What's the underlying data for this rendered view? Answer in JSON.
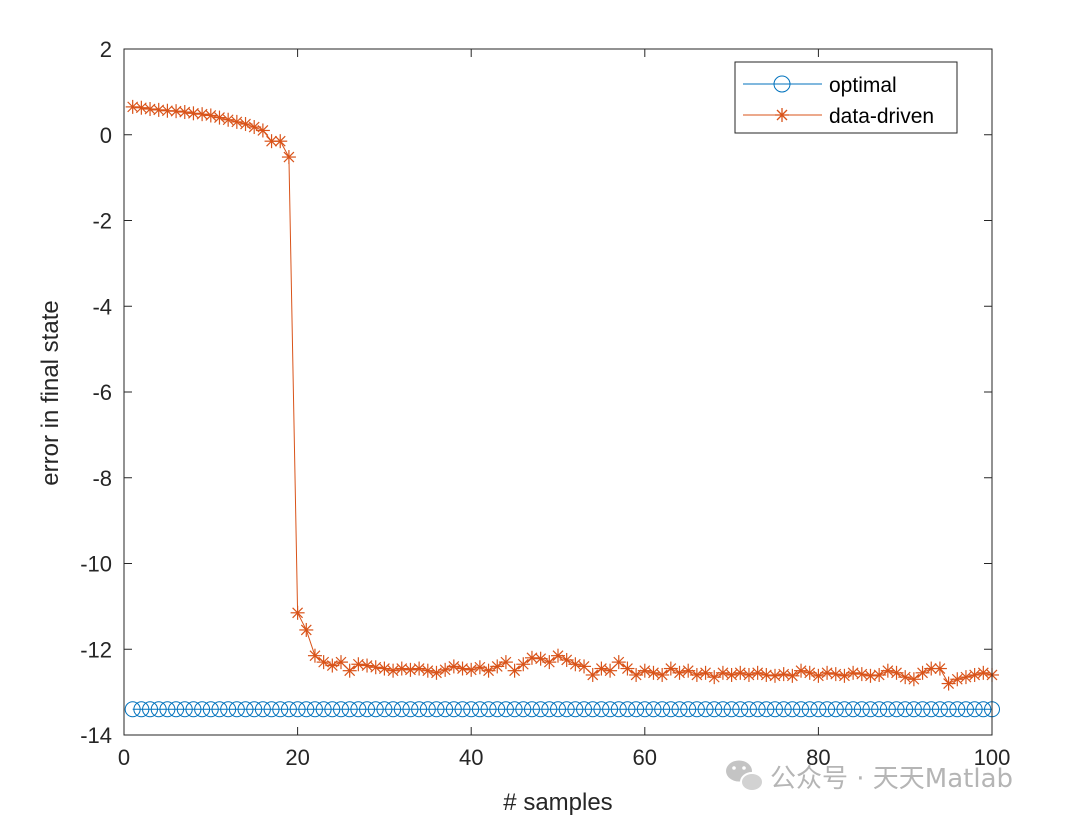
{
  "chart_data": {
    "type": "line",
    "title": "",
    "xlabel": "# samples",
    "ylabel": "error in final state",
    "xlim": [
      0,
      100
    ],
    "ylim": [
      -14,
      2
    ],
    "xticks": [
      0,
      20,
      40,
      60,
      80,
      100
    ],
    "yticks": [
      2,
      0,
      -2,
      -4,
      -6,
      -8,
      -10,
      -12,
      -14
    ],
    "grid": false,
    "legend_position": "top-right",
    "series": [
      {
        "name": "optimal",
        "color": "#0072BD",
        "marker": "circle",
        "x": [
          1,
          2,
          3,
          4,
          5,
          6,
          7,
          8,
          9,
          10,
          11,
          12,
          13,
          14,
          15,
          16,
          17,
          18,
          19,
          20,
          21,
          22,
          23,
          24,
          25,
          26,
          27,
          28,
          29,
          30,
          31,
          32,
          33,
          34,
          35,
          36,
          37,
          38,
          39,
          40,
          41,
          42,
          43,
          44,
          45,
          46,
          47,
          48,
          49,
          50,
          51,
          52,
          53,
          54,
          55,
          56,
          57,
          58,
          59,
          60,
          61,
          62,
          63,
          64,
          65,
          66,
          67,
          68,
          69,
          70,
          71,
          72,
          73,
          74,
          75,
          76,
          77,
          78,
          79,
          80,
          81,
          82,
          83,
          84,
          85,
          86,
          87,
          88,
          89,
          90,
          91,
          92,
          93,
          94,
          95,
          96,
          97,
          98,
          99,
          100
        ],
        "y": [
          -13.4,
          -13.4,
          -13.4,
          -13.4,
          -13.4,
          -13.4,
          -13.4,
          -13.4,
          -13.4,
          -13.4,
          -13.4,
          -13.4,
          -13.4,
          -13.4,
          -13.4,
          -13.4,
          -13.4,
          -13.4,
          -13.4,
          -13.4,
          -13.4,
          -13.4,
          -13.4,
          -13.4,
          -13.4,
          -13.4,
          -13.4,
          -13.4,
          -13.4,
          -13.4,
          -13.4,
          -13.4,
          -13.4,
          -13.4,
          -13.4,
          -13.4,
          -13.4,
          -13.4,
          -13.4,
          -13.4,
          -13.4,
          -13.4,
          -13.4,
          -13.4,
          -13.4,
          -13.4,
          -13.4,
          -13.4,
          -13.4,
          -13.4,
          -13.4,
          -13.4,
          -13.4,
          -13.4,
          -13.4,
          -13.4,
          -13.4,
          -13.4,
          -13.4,
          -13.4,
          -13.4,
          -13.4,
          -13.4,
          -13.4,
          -13.4,
          -13.4,
          -13.4,
          -13.4,
          -13.4,
          -13.4,
          -13.4,
          -13.4,
          -13.4,
          -13.4,
          -13.4,
          -13.4,
          -13.4,
          -13.4,
          -13.4,
          -13.4,
          -13.4,
          -13.4,
          -13.4,
          -13.4,
          -13.4,
          -13.4,
          -13.4,
          -13.4,
          -13.4,
          -13.4,
          -13.4,
          -13.4,
          -13.4,
          -13.4,
          -13.4,
          -13.4,
          -13.4,
          -13.4,
          -13.4,
          -13.4
        ]
      },
      {
        "name": "data-driven",
        "color": "#D95319",
        "marker": "asterisk",
        "x": [
          1,
          2,
          3,
          4,
          5,
          6,
          7,
          8,
          9,
          10,
          11,
          12,
          13,
          14,
          15,
          16,
          17,
          18,
          19,
          20,
          21,
          22,
          23,
          24,
          25,
          26,
          27,
          28,
          29,
          30,
          31,
          32,
          33,
          34,
          35,
          36,
          37,
          38,
          39,
          40,
          41,
          42,
          43,
          44,
          45,
          46,
          47,
          48,
          49,
          50,
          51,
          52,
          53,
          54,
          55,
          56,
          57,
          58,
          59,
          60,
          61,
          62,
          63,
          64,
          65,
          66,
          67,
          68,
          69,
          70,
          71,
          72,
          73,
          74,
          75,
          76,
          77,
          78,
          79,
          80,
          81,
          82,
          83,
          84,
          85,
          86,
          87,
          88,
          89,
          90,
          91,
          92,
          93,
          94,
          95,
          96,
          97,
          98,
          99,
          100
        ],
        "y": [
          0.65,
          0.63,
          0.6,
          0.58,
          0.56,
          0.55,
          0.53,
          0.5,
          0.48,
          0.45,
          0.4,
          0.35,
          0.3,
          0.25,
          0.18,
          0.1,
          -0.15,
          -0.15,
          -0.52,
          -11.15,
          -11.55,
          -12.15,
          -12.3,
          -12.38,
          -12.3,
          -12.5,
          -12.35,
          -12.38,
          -12.42,
          -12.45,
          -12.5,
          -12.45,
          -12.48,
          -12.45,
          -12.5,
          -12.55,
          -12.48,
          -12.4,
          -12.45,
          -12.48,
          -12.42,
          -12.5,
          -12.4,
          -12.3,
          -12.5,
          -12.35,
          -12.2,
          -12.22,
          -12.3,
          -12.15,
          -12.25,
          -12.35,
          -12.4,
          -12.6,
          -12.45,
          -12.5,
          -12.3,
          -12.45,
          -12.6,
          -12.5,
          -12.55,
          -12.6,
          -12.45,
          -12.55,
          -12.5,
          -12.6,
          -12.55,
          -12.65,
          -12.55,
          -12.6,
          -12.55,
          -12.6,
          -12.55,
          -12.6,
          -12.62,
          -12.58,
          -12.62,
          -12.5,
          -12.55,
          -12.62,
          -12.55,
          -12.58,
          -12.62,
          -12.55,
          -12.58,
          -12.62,
          -12.6,
          -12.5,
          -12.55,
          -12.65,
          -12.7,
          -12.55,
          -12.45,
          -12.45,
          -12.8,
          -12.7,
          -12.65,
          -12.6,
          -12.55,
          -12.6
        ]
      }
    ]
  },
  "legend": {
    "items": [
      "optimal",
      "data-driven"
    ]
  },
  "watermark": {
    "text": "公众号 · 天天Matlab"
  }
}
